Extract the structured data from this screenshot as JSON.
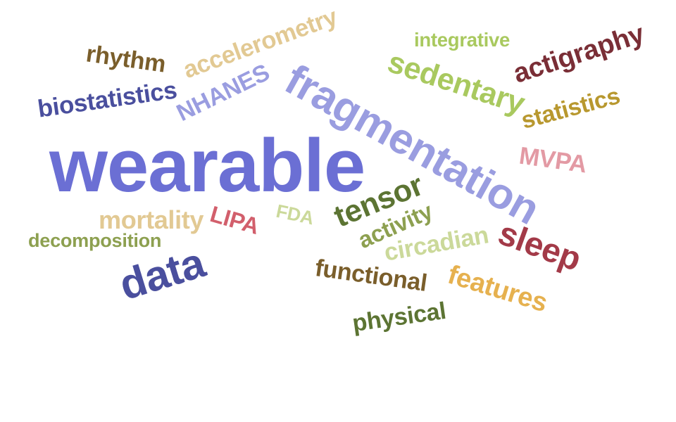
{
  "words": [
    {
      "text": "wearable",
      "color": "#6b6fd4"
    },
    {
      "text": "fragmentation",
      "color": "#9a9de0"
    },
    {
      "text": "data",
      "color": "#4a4f9e"
    },
    {
      "text": "sleep",
      "color": "#a33a48"
    },
    {
      "text": "actigraphy",
      "color": "#7a2e36"
    },
    {
      "text": "sedentary",
      "color": "#a9c95f"
    },
    {
      "text": "accelerometry",
      "color": "#e2c993"
    },
    {
      "text": "biostatistics",
      "color": "#4a4f9e"
    },
    {
      "text": "tensor",
      "color": "#5c7433"
    },
    {
      "text": "features",
      "color": "#e6b14f"
    },
    {
      "text": "functional",
      "color": "#7a5e2b"
    },
    {
      "text": "physical",
      "color": "#5c7433"
    },
    {
      "text": "mortality",
      "color": "#e2c993"
    },
    {
      "text": "NHANES",
      "color": "#9a9de0"
    },
    {
      "text": "circadian",
      "color": "#cbd99a"
    },
    {
      "text": "activity",
      "color": "#8da050"
    },
    {
      "text": "statistics",
      "color": "#b8982f"
    },
    {
      "text": "rhythm",
      "color": "#7a5e2b"
    },
    {
      "text": "MVPA",
      "color": "#e39aa4"
    },
    {
      "text": "LIPA",
      "color": "#d25f6c"
    },
    {
      "text": "decomposition",
      "color": "#8da050"
    },
    {
      "text": "integrative",
      "color": "#a9c95f"
    },
    {
      "text": "FDA",
      "color": "#cbd99a"
    }
  ]
}
